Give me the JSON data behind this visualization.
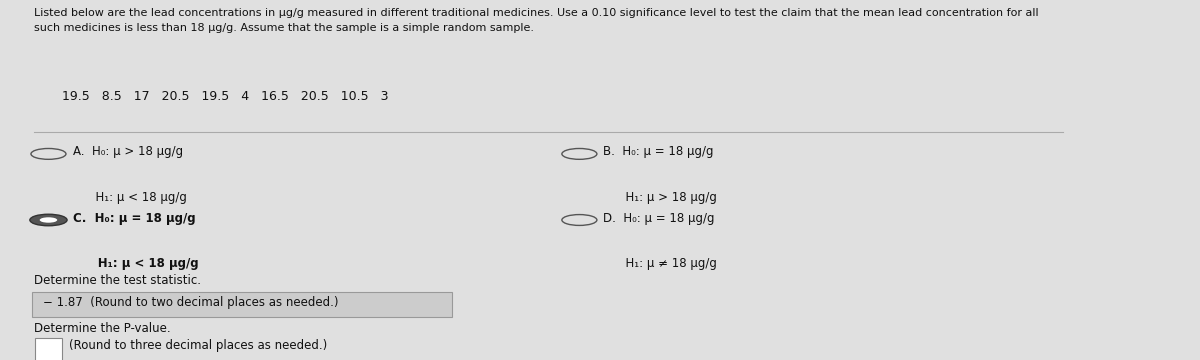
{
  "bg_color": "#e0e0e0",
  "title_text": "Listed below are the lead concentrations in μg/g measured in different traditional medicines. Use a 0.10 significance level to test the claim that the mean lead concentration for all\nsuch medicines is less than 18 μg/g. Assume that the sample is a simple random sample.",
  "data_row": "19.5   8.5   17   20.5   19.5   4   16.5   20.5   10.5   3",
  "optA_line1": "A.  H₀: μ > 18 μg/g",
  "optA_line2": "      H₁: μ < 18 μg/g",
  "optB_line1": "B.  H₀: μ = 18 μg/g",
  "optB_line2": "      H₁: μ > 18 μg/g",
  "optC_line1": "C.  H₀: μ = 18 μg/g",
  "optC_line2": "      H₁: μ < 18 μg/g",
  "optD_line1": "D.  H₀: μ = 18 μg/g",
  "optD_line2": "      H₁: μ ≠ 18 μg/g",
  "test_stat_label": "Determine the test statistic.",
  "test_stat_value": "− 1.87  (Round to two decimal places as needed.)",
  "pvalue_label": "Determine the P-value.",
  "pvalue_input": "(Round to three decimal places as needed.)",
  "text_color": "#111111",
  "selected_option": "C"
}
